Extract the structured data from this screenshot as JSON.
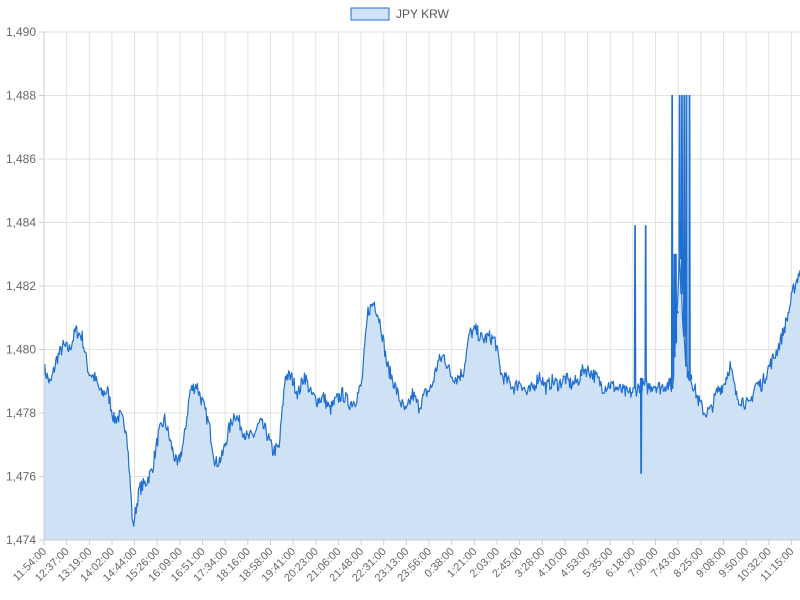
{
  "chart_data": {
    "type": "area",
    "legend": {
      "position": "top-center"
    },
    "grid": true,
    "colors": {
      "line": "#1f6fd1",
      "fill": "#cfe1f5",
      "grid": "#e2e2e2",
      "text": "#666666"
    },
    "ylim": [
      1474,
      1490
    ],
    "y_ticks": [
      "1,474",
      "1,476",
      "1,478",
      "1,480",
      "1,482",
      "1,484",
      "1,486",
      "1,488",
      "1,490"
    ],
    "y_tick_values": [
      1474,
      1476,
      1478,
      1480,
      1482,
      1484,
      1486,
      1488,
      1490
    ],
    "x_ticks": [
      "11:54:00",
      "12:37:00",
      "13:19:00",
      "14:02:00",
      "14:44:00",
      "15:26:00",
      "16:09:00",
      "16:51:00",
      "17:34:00",
      "18:16:00",
      "18:58:00",
      "19:41:00",
      "20:23:00",
      "21:06:00",
      "21:48:00",
      "22:31:00",
      "23:13:00",
      "23:56:00",
      "0:38:00",
      "1:21:00",
      "2:03:00",
      "2:45:00",
      "3:28:00",
      "4:10:00",
      "4:53:00",
      "5:35:00",
      "6:18:00",
      "7:00:00",
      "7:43:00",
      "8:25:00",
      "9:08:00",
      "9:50:00",
      "10:32:00",
      "11:15:00"
    ],
    "series": [
      {
        "name": "JPY KRW",
        "values": [
          1479.4,
          1478.9,
          1479.7,
          1480.1,
          1480.0,
          1480.6,
          1480.4,
          1479.3,
          1479.1,
          1478.6,
          1478.7,
          1477.8,
          1477.9,
          1477.5,
          1474.4,
          1475.6,
          1475.8,
          1476.2,
          1477.3,
          1477.8,
          1477.0,
          1476.3,
          1477.1,
          1478.7,
          1478.9,
          1478.3,
          1477.6,
          1476.4,
          1476.6,
          1477.4,
          1478.0,
          1477.6,
          1477.2,
          1477.3,
          1477.7,
          1477.4,
          1476.8,
          1476.9,
          1479.2,
          1479.1,
          1478.6,
          1479.2,
          1478.6,
          1478.4,
          1478.5,
          1478.1,
          1478.4,
          1478.6,
          1478.3,
          1478.4,
          1478.9,
          1481.2,
          1481.5,
          1480.8,
          1479.5,
          1479.0,
          1478.4,
          1478.0,
          1478.6,
          1478.2,
          1478.6,
          1478.8,
          1479.6,
          1479.8,
          1479.2,
          1479.1,
          1479.3,
          1480.5,
          1480.6,
          1480.3,
          1480.4,
          1480.3,
          1479.2,
          1479.0,
          1478.8,
          1479.0,
          1478.6,
          1478.8,
          1479.2,
          1478.8,
          1479.0,
          1478.9,
          1479.1,
          1478.9,
          1479.0,
          1479.4,
          1479.3,
          1479.1,
          1478.8,
          1478.9,
          1478.8,
          1478.7,
          1478.6,
          1478.7,
          1478.9,
          1478.8,
          1478.9,
          1478.8,
          1478.9,
          1478.8,
          1482.8,
          1479.5,
          1479.0,
          1478.4,
          1478.0,
          1478.1,
          1478.7,
          1478.9,
          1479.5,
          1478.5,
          1478.4,
          1478.2,
          1478.9,
          1478.9,
          1479.4,
          1479.8,
          1480.3,
          1481.0,
          1481.9,
          1482.5
        ]
      }
    ],
    "spikes": [
      {
        "at": 0.781,
        "value": 1483.9
      },
      {
        "at": 0.789,
        "value": 1476.1
      },
      {
        "at": 0.795,
        "value": 1483.9
      },
      {
        "at": 0.828,
        "value": 1479.1
      },
      {
        "at": 0.83,
        "value": 1488.0
      },
      {
        "at": 0.833,
        "value": 1483.0
      },
      {
        "at": 0.835,
        "value": 1483.0
      },
      {
        "at": 0.837,
        "value": 1481.2
      },
      {
        "at": 0.84,
        "value": 1488.0
      },
      {
        "at": 0.843,
        "value": 1488.0
      },
      {
        "at": 0.846,
        "value": 1488.0
      },
      {
        "at": 0.849,
        "value": 1488.0
      },
      {
        "at": 0.851,
        "value": 1479.3
      },
      {
        "at": 0.853,
        "value": 1488.0
      },
      {
        "at": 0.855,
        "value": 1479.2
      }
    ]
  }
}
